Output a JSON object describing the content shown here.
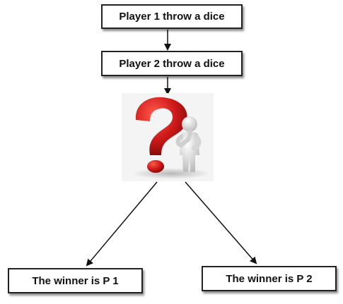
{
  "nodes": {
    "player1": "Player 1 throw a dice",
    "player2": "Player 2 throw a dice",
    "winner1": "The winner is P 1",
    "winner2": "The winner is P 2"
  },
  "decision_icon": "question-mark-thinking-figure-icon",
  "colors": {
    "question_mark": "#d01a1a",
    "figure": "#e6e6e6",
    "line": "#111111"
  }
}
